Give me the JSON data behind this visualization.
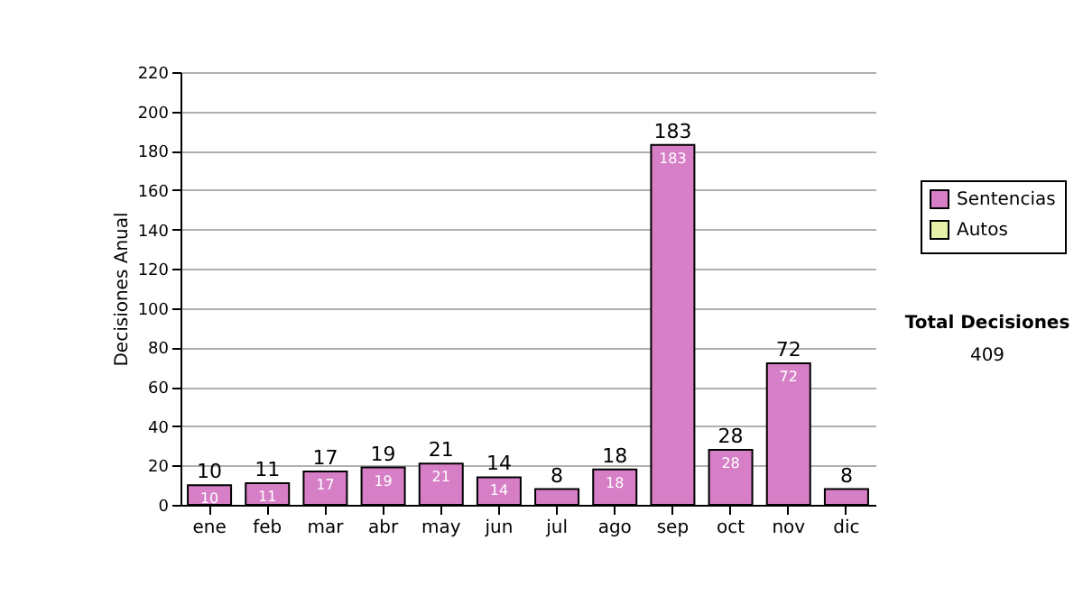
{
  "chart_data": {
    "type": "bar",
    "stacked": true,
    "ylabel": "Decisiones Anual",
    "categories": [
      "ene",
      "feb",
      "mar",
      "abr",
      "may",
      "jun",
      "jul",
      "ago",
      "sep",
      "oct",
      "nov",
      "dic"
    ],
    "series": [
      {
        "name": "Sentencias",
        "color": "#d67fc6",
        "values": [
          10,
          11,
          17,
          19,
          21,
          14,
          8,
          18,
          183,
          28,
          72,
          8
        ],
        "value_labels": [
          "10",
          "11",
          "17",
          "19",
          "21",
          "14",
          null,
          "18",
          "183",
          "28",
          "72",
          null
        ]
      },
      {
        "name": "Autos",
        "color": "#e6f0a8",
        "values": [
          0,
          0,
          0,
          0,
          0,
          0,
          0,
          0,
          0,
          0,
          0,
          0
        ]
      }
    ],
    "totals": [
      "10",
      "11",
      "17",
      "19",
      "21",
      "14",
      "8",
      "18",
      "183",
      "28",
      "72",
      "8"
    ],
    "ylim": [
      0,
      220
    ],
    "yticks": [
      0,
      20,
      40,
      60,
      80,
      100,
      120,
      140,
      160,
      180,
      200,
      220
    ],
    "grid": "y",
    "legend": "right",
    "annotations": [
      "Total Decisiones",
      "409"
    ]
  }
}
